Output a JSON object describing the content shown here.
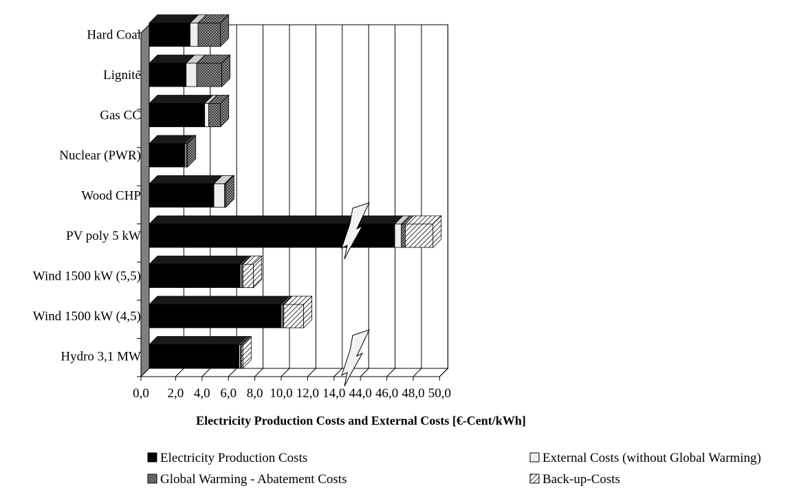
{
  "chart_data": {
    "type": "bar",
    "orientation": "horizontal",
    "stacked": true,
    "three_d": true,
    "categories": [
      "Hard Coal",
      "Lignite",
      "Gas CC",
      "Nuclear (PWR)",
      "Wood CHP",
      "PV poly 5 kW",
      "Wind 1500 kW (5,5)",
      "Wind 1500 kW (4,5)",
      "Hydro 3,1 MW"
    ],
    "series": [
      {
        "name": "Electricity Production Costs",
        "values": [
          3.1,
          2.8,
          4.2,
          2.7,
          4.9,
          46.6,
          6.9,
          10.0,
          6.8
        ]
      },
      {
        "name": "External Costs (without Global Warming)",
        "values": [
          0.6,
          0.8,
          0.3,
          0.1,
          0.8,
          0.5,
          0.1,
          0.1,
          0.1
        ]
      },
      {
        "name": "Global Warming - Abatement Costs",
        "values": [
          1.7,
          1.9,
          0.9,
          0.1,
          0.1,
          0.3,
          0.1,
          0.1,
          0.1
        ]
      },
      {
        "name": "Back-up-Costs",
        "values": [
          0.0,
          0.0,
          0.0,
          0.0,
          0.0,
          2.1,
          0.8,
          1.5,
          0.1
        ]
      }
    ],
    "xlabel": "Electricity Production Costs and External Costs [€-Cent/kWh]",
    "x_ticks": [
      "0,0",
      "2,0",
      "4,0",
      "6,0",
      "8,0",
      "10,0",
      "12,0",
      "14,0",
      "44,0",
      "46,0",
      "48,0",
      "50,0"
    ],
    "x_tick_values": [
      0,
      2,
      4,
      6,
      8,
      10,
      12,
      14,
      44,
      46,
      48,
      50
    ],
    "axis_break": [
      15,
      43
    ],
    "grid": "vertical",
    "legend_position": "bottom",
    "colors": {
      "production": "#000000",
      "external": "#eeeeee",
      "global_warming": "#555555",
      "backup": "#ffffff",
      "wall": "#7f7f7f"
    }
  }
}
